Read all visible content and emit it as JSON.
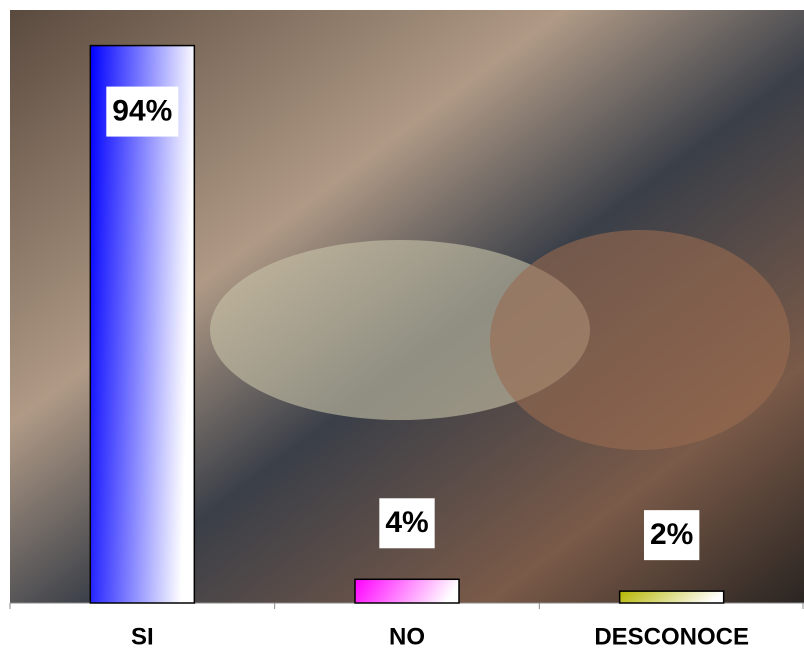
{
  "chart_data": {
    "type": "bar",
    "categories": [
      "SI",
      "NO",
      "DESCONOCE"
    ],
    "values": [
      94,
      4,
      2
    ],
    "value_labels": [
      "94%",
      "4%",
      "2%"
    ],
    "colors": [
      "#0000ff",
      "#ff00ff",
      "#b5b500"
    ],
    "ylim": [
      0,
      100
    ]
  }
}
